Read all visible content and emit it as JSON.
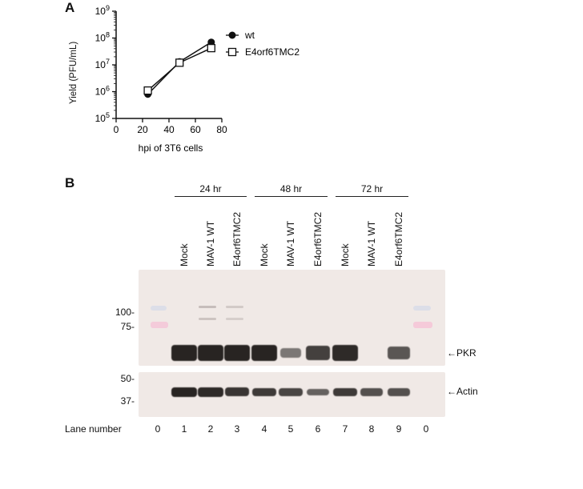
{
  "panelA": {
    "letter": "A",
    "chart_data": {
      "type": "line",
      "xlabel": "hpi of 3T6 cells",
      "ylabel": "Yield (PFU/mL)",
      "xlim": [
        0,
        80
      ],
      "xticks": [
        "0",
        "20",
        "40",
        "60",
        "80"
      ],
      "ylim": [
        100000,
        1000000000
      ],
      "yscale": "log",
      "yticks": [
        {
          "base": "10",
          "exp": "5"
        },
        {
          "base": "10",
          "exp": "6"
        },
        {
          "base": "10",
          "exp": "7"
        },
        {
          "base": "10",
          "exp": "8"
        },
        {
          "base": "10",
          "exp": "9"
        }
      ],
      "legend_position": "top-right",
      "grid": false,
      "series": [
        {
          "name": "wt",
          "marker": "filled-circle",
          "x": [
            24,
            48,
            72
          ],
          "y": [
            800000,
            13000000,
            70000000
          ]
        },
        {
          "name": "E4orf6TMC2",
          "marker": "open-square",
          "x": [
            24,
            48,
            72
          ],
          "y": [
            1100000,
            12000000,
            42000000
          ]
        }
      ]
    }
  },
  "panelB": {
    "letter": "B",
    "timepoints": [
      "24 hr",
      "48 hr",
      "72 hr"
    ],
    "lane_labels": [
      "Mock",
      "MAV-1 WT",
      "E4orf6TMC2",
      "Mock",
      "MAV-1 WT",
      "E4orf6TMC2",
      "Mock",
      "MAV-1 WT",
      "E4orf6TMC2"
    ],
    "mw_markers_top": [
      "100-",
      "75-"
    ],
    "mw_markers_bottom": [
      "50-",
      "37-"
    ],
    "proteins": [
      "PKR",
      "Actin"
    ],
    "arrow_glyph": "←",
    "lane_number_label": "Lane number",
    "lane_numbers": [
      "0",
      "1",
      "2",
      "3",
      "4",
      "5",
      "6",
      "7",
      "8",
      "9",
      "0"
    ],
    "pkr_band_intensity": [
      0,
      1.0,
      1.0,
      1.0,
      1.0,
      0.25,
      0.75,
      0.95,
      0,
      0.55,
      0
    ],
    "actin_band_intensity": [
      0,
      1.0,
      0.95,
      0.85,
      0.8,
      0.7,
      0.45,
      0.8,
      0.6,
      0.6,
      0
    ]
  }
}
